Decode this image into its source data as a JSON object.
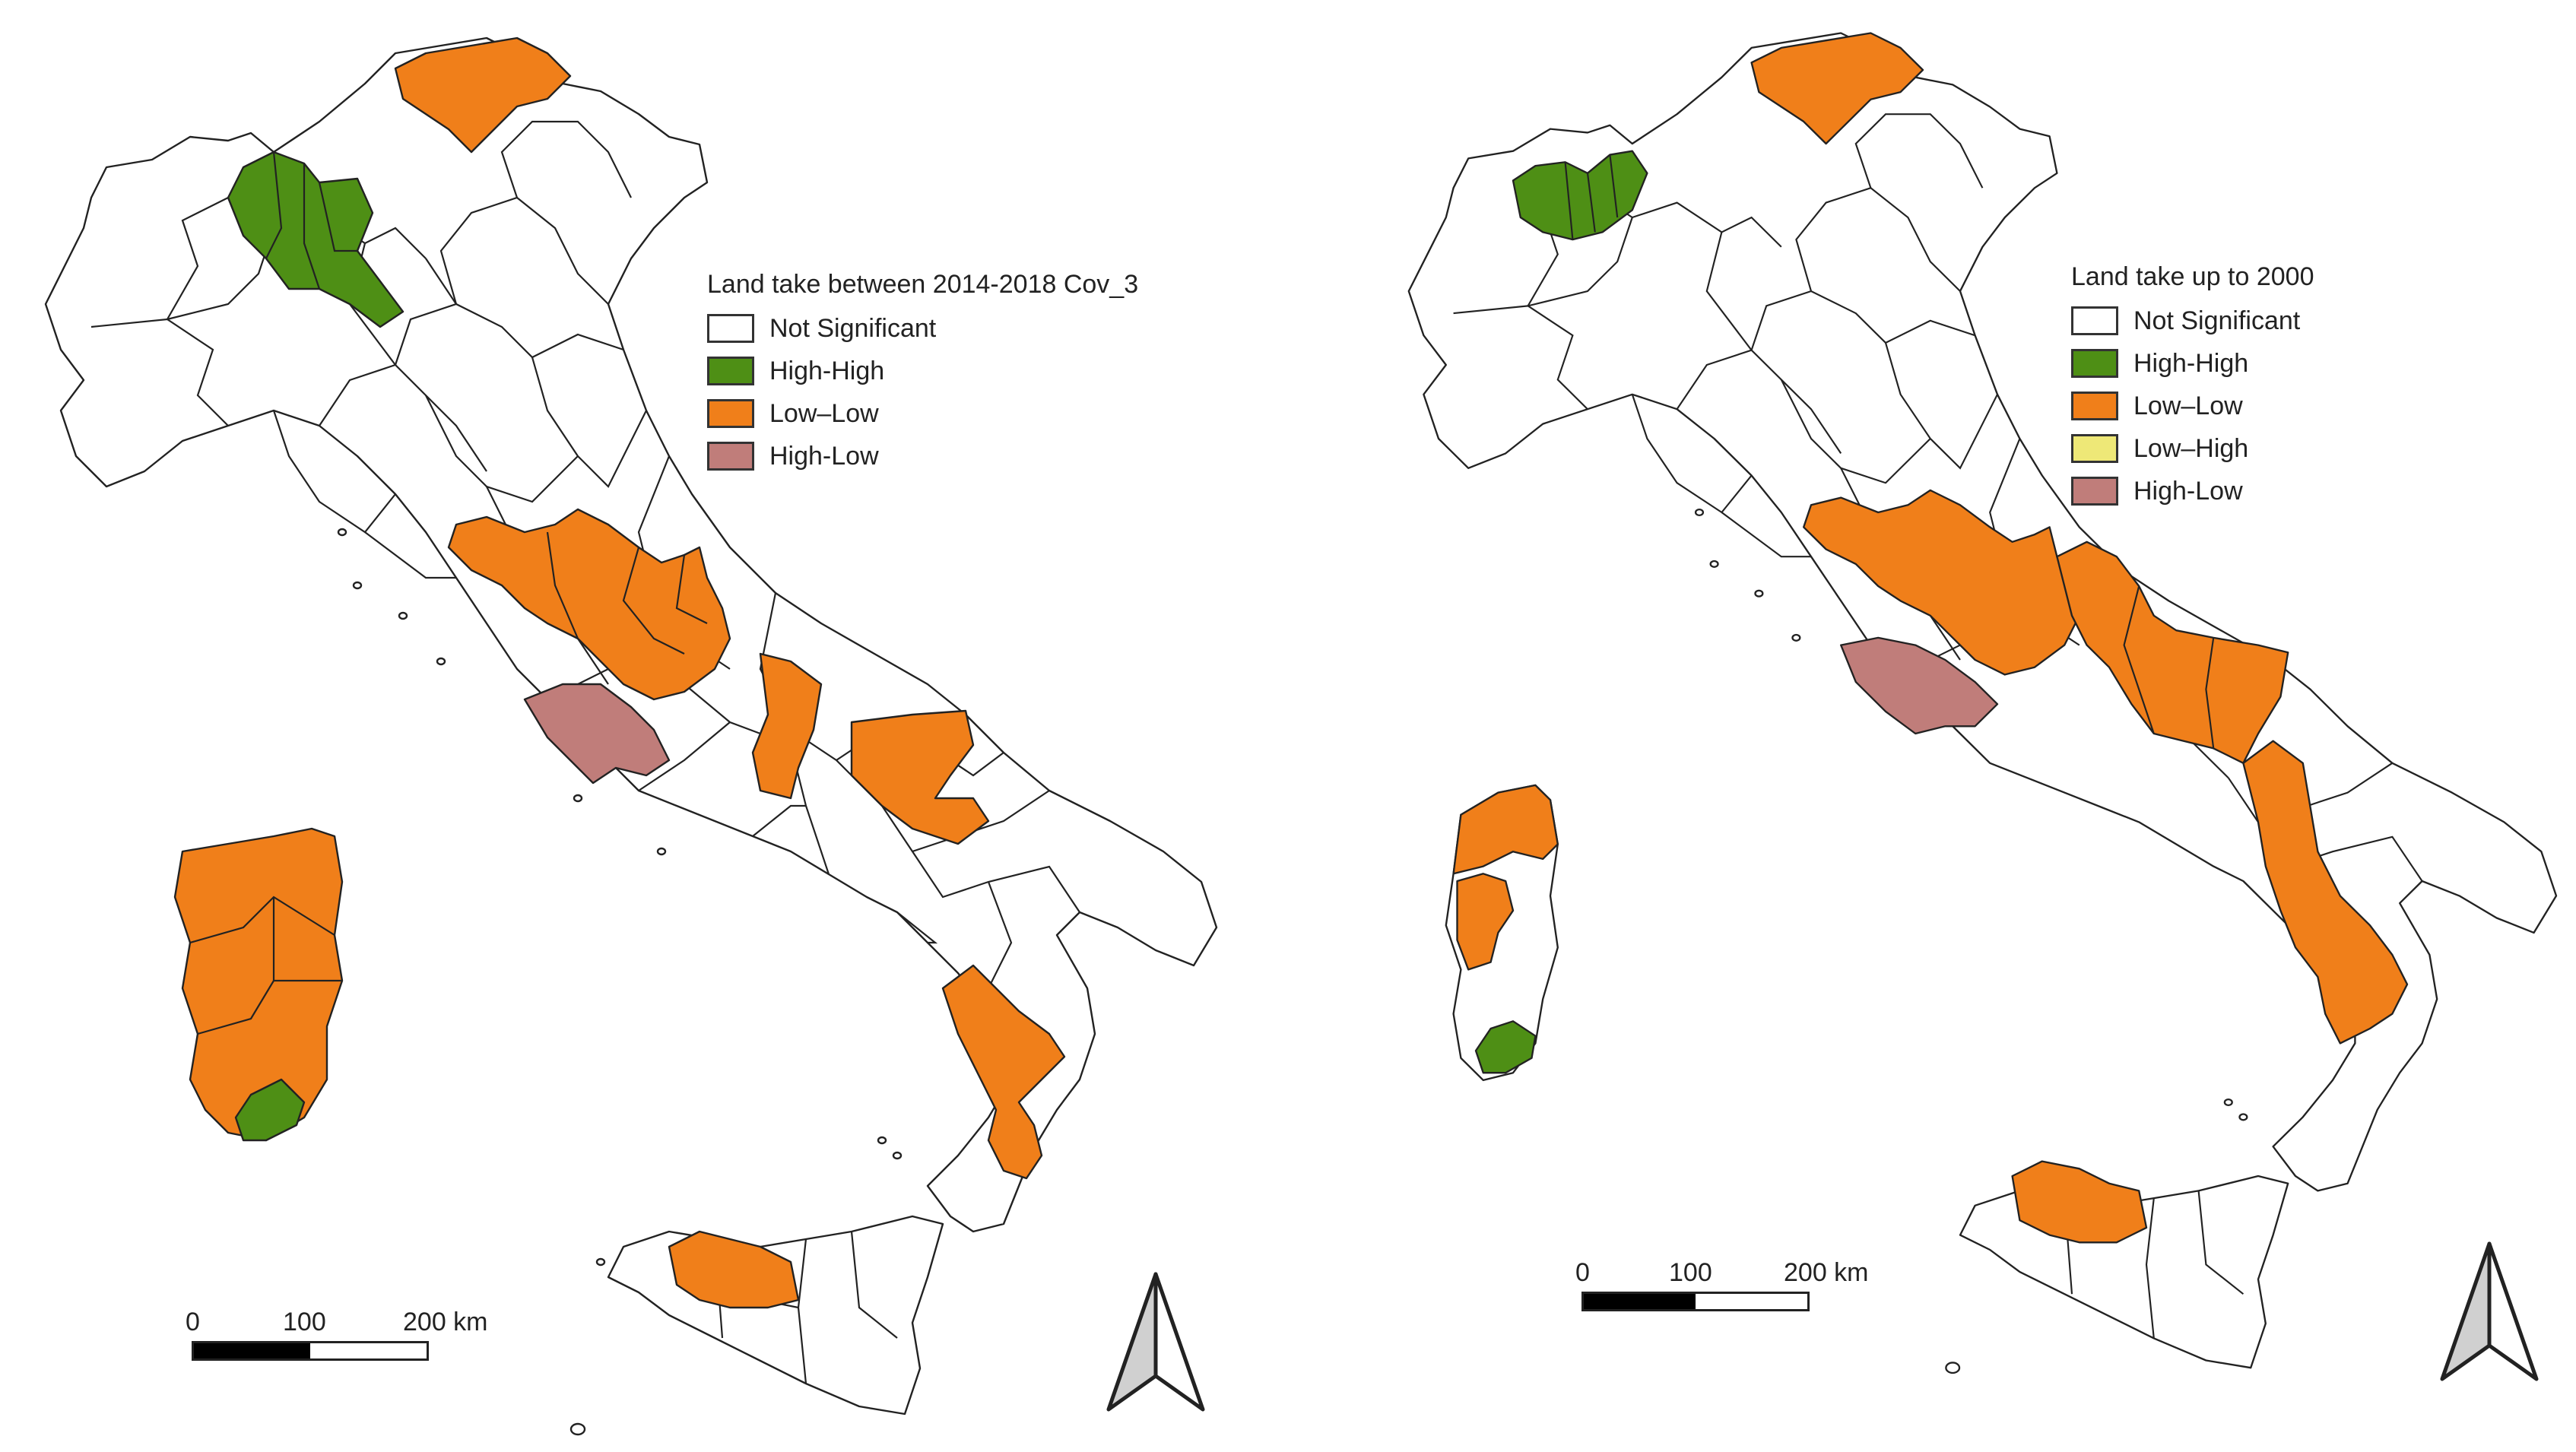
{
  "maps": [
    {
      "legend": {
        "title": "Land take between 2014-2018 Cov_3",
        "items": [
          {
            "label": "Not Significant",
            "color": "#ffffff"
          },
          {
            "label": "High-High",
            "color": "#4e8f15"
          },
          {
            "label": "Low–Low",
            "color": "#f07f1a"
          },
          {
            "label": "High-Low",
            "color": "#c07d7a"
          }
        ]
      },
      "scale": {
        "labels": [
          "0",
          "100",
          "200 km"
        ]
      },
      "north_arrow": "north-arrow-icon"
    },
    {
      "legend": {
        "title": "Land take up to 2000",
        "items": [
          {
            "label": "Not Significant",
            "color": "#ffffff"
          },
          {
            "label": "High-High",
            "color": "#4e8f15"
          },
          {
            "label": "Low–Low",
            "color": "#f07f1a"
          },
          {
            "label": "Low–High",
            "color": "#eee877"
          },
          {
            "label": "High-Low",
            "color": "#c07d7a"
          }
        ]
      },
      "scale": {
        "labels": [
          "0",
          "100",
          "200 km"
        ]
      },
      "north_arrow": "north-arrow-icon"
    }
  ],
  "colors": {
    "not_significant": "#ffffff",
    "high_high": "#4e8f15",
    "low_low": "#f07f1a",
    "low_high": "#eee877",
    "high_low": "#c07d7a",
    "outline": "#222222"
  }
}
